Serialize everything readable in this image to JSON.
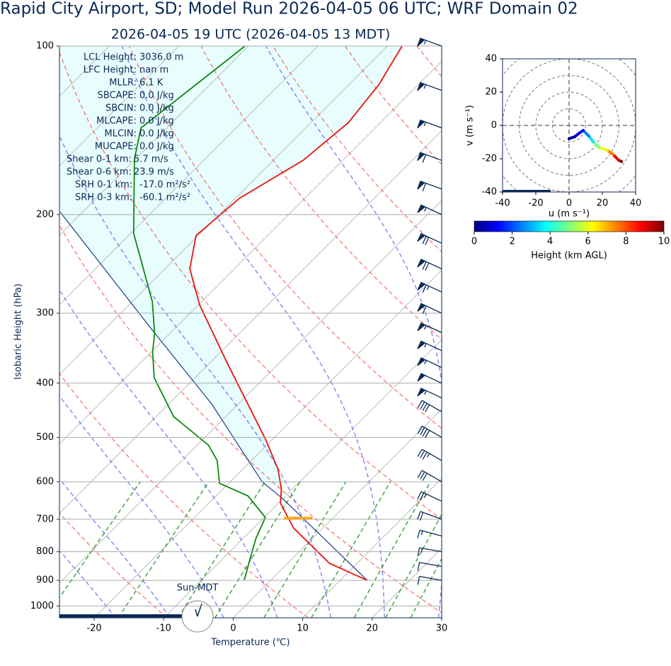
{
  "chart_data": [
    {
      "type": "skew-t",
      "title": "Rapid City Airport, SD; Model Run 2026-04-05 06 UTC; WRF Domain 02",
      "subtitle": "2026-04-05 19 UTC  (2026-04-05 13 MDT)",
      "x_label": "Temperature (℃)",
      "y_label": "Isobaric Height (hPa)",
      "xlim": [
        -25,
        30
      ],
      "xticks": [
        -20,
        -10,
        0,
        10,
        20,
        30
      ],
      "ylim": [
        100,
        1050
      ],
      "yticks": [
        100,
        200,
        300,
        400,
        500,
        600,
        700,
        800,
        900,
        1000
      ],
      "log_scale": "y",
      "grid": true,
      "temperature": {
        "color": "#e8120c",
        "pressure": [
          100,
          117,
          137,
          160,
          187,
          218,
          250,
          290,
          366,
          504,
          570,
          618,
          655,
          726,
          839,
          900
        ],
        "values": [
          -57.9,
          -55.7,
          -54.6,
          -55.7,
          -59.4,
          -60.3,
          -56.4,
          -49.8,
          -37.8,
          -21.0,
          -14.9,
          -11.6,
          -9.7,
          -4.2,
          6.0,
          13.9
        ]
      },
      "dewpoint": {
        "color": "#0a8a0a",
        "pressure": [
          100,
          140,
          159,
          216,
          286,
          326,
          352,
          391,
          459,
          516,
          550,
          604,
          636,
          695,
          759,
          832,
          900
        ],
        "values": [
          -80.5,
          -83.7,
          -80.2,
          -69.6,
          -57.1,
          -52.2,
          -49.8,
          -45.9,
          -37.5,
          -28.4,
          -24.9,
          -21.3,
          -15.4,
          -9.8,
          -8.1,
          -5.8,
          -3.8
        ]
      },
      "parcel": {
        "color": "#1a3a8a",
        "pressure": [
          198,
          316,
          436,
          600,
          645,
          900
        ],
        "values": [
          -83.2,
          -54.1,
          -33.8,
          -15.4,
          -9.8,
          13.9
        ]
      },
      "lcl_pressure": 697,
      "wind": {
        "color": "#0a2a55",
        "pressure": [
          100,
          120,
          140,
          160,
          180,
          200,
          225,
          250,
          275,
          300,
          325,
          350,
          375,
          400,
          425,
          450,
          500,
          550,
          600,
          650,
          700,
          750,
          800,
          850,
          900
        ],
        "speed": [
          55,
          55,
          55,
          60,
          60,
          55,
          70,
          70,
          65,
          60,
          55,
          55,
          55,
          50,
          55,
          40,
          40,
          35,
          30,
          25,
          20,
          15,
          15,
          10,
          10
        ],
        "direction": [
          290,
          290,
          290,
          290,
          290,
          295,
          295,
          295,
          295,
          295,
          295,
          295,
          295,
          295,
          295,
          300,
          300,
          300,
          300,
          295,
          290,
          285,
          280,
          280,
          280
        ]
      },
      "stats": [
        [
          "LCL Height:",
          "3036.0 m"
        ],
        [
          "LFC Height:",
          "nan m"
        ],
        [
          "MLLR:",
          "6.1 K"
        ],
        [
          "SBCAPE:",
          "0.0 J/kg"
        ],
        [
          "SBCIN:",
          "0.0 J/kg"
        ],
        [
          "MLCAPE:",
          "0.0 J/kg"
        ],
        [
          "MLCIN:",
          "0.0 J/kg"
        ],
        [
          "MUCAPE:",
          "0.0 J/kg"
        ],
        [
          "Shear 0-1 km:",
          "5.7 m/s"
        ],
        [
          "Shear 0-6 km:",
          "23.9 m/s"
        ],
        [
          "SRH 0-1 km:",
          "-17.0 m²/s²"
        ],
        [
          "SRH 0-3 km:",
          "-60.1 m²/s²"
        ]
      ],
      "sun_label": "Sun-MDT"
    },
    {
      "type": "hodograph",
      "x_label": "u (m s⁻¹)",
      "y_label": "v (m s⁻¹)",
      "xlim": [
        -40,
        40
      ],
      "xticks": [
        -40,
        -20,
        0,
        20,
        40
      ],
      "ylim": [
        -40,
        40
      ],
      "yticks": [
        -40,
        -20,
        0,
        20,
        40
      ],
      "u": [
        0,
        3.4,
        6,
        8.5,
        11.9,
        14.5,
        17.9,
        23,
        26.4,
        29.8,
        31.5
      ],
      "v": [
        -8,
        -6.8,
        -4.7,
        -3,
        -6.4,
        -9.8,
        -13.2,
        -14.9,
        -17.4,
        -20.9,
        -21.7
      ],
      "heights": [
        0,
        0.5,
        1,
        1.5,
        2.5,
        3.5,
        5,
        6,
        7.5,
        9,
        10
      ],
      "colorbar_label": "Height (km AGL)",
      "clim": [
        0,
        10
      ],
      "colorbar_ticks": [
        0,
        2,
        4,
        6,
        8,
        10
      ]
    }
  ]
}
